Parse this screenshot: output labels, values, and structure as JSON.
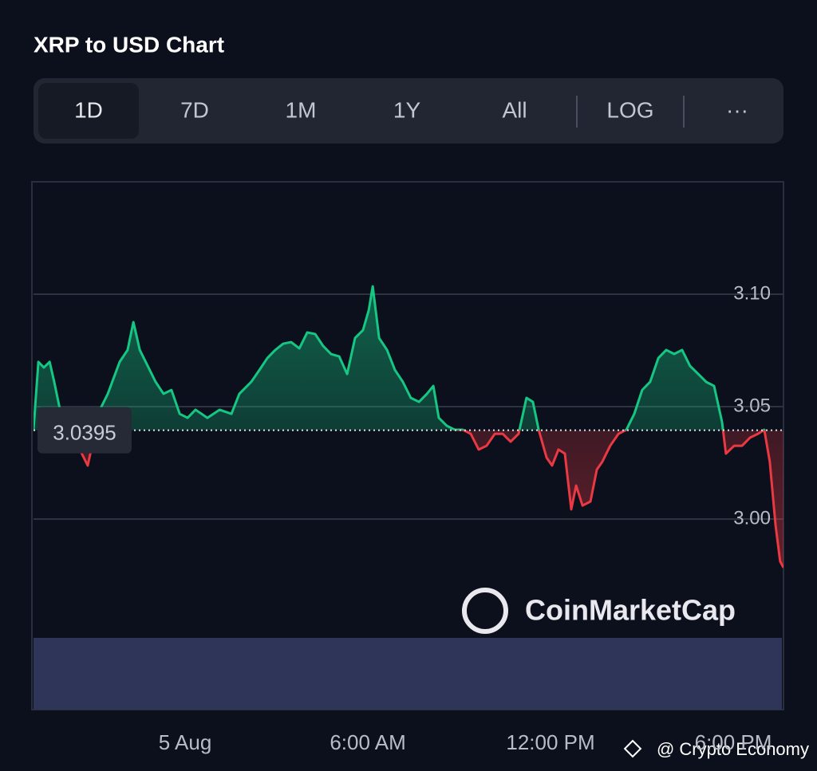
{
  "tabs": [
    "1D",
    "7D",
    "1M",
    "1Y",
    "All",
    "LOG",
    "···"
  ],
  "watermark": "CoinMarketCap",
  "credit": "@ Crypto Economy",
  "chart_data": {
    "type": "line",
    "title": "XRP to USD Chart",
    "x": [
      -4.98,
      -4.82,
      -4.64,
      -4.45,
      -4.3,
      -4.11,
      -3.2,
      -2.8,
      -2.54,
      -2.15,
      -1.89,
      -1.7,
      -1.49,
      -1.23,
      -0.97,
      -0.71,
      -0.45,
      -0.18,
      0.08,
      0.34,
      0.73,
      1.13,
      1.52,
      1.78,
      2.17,
      2.44,
      2.7,
      2.96,
      3.22,
      3.48,
      3.75,
      4.01,
      4.27,
      4.53,
      4.79,
      5.06,
      5.32,
      5.58,
      5.84,
      6.03,
      6.16,
      6.37,
      6.63,
      6.89,
      7.15,
      7.41,
      7.68,
      7.94,
      8.15,
      8.33,
      8.59,
      8.86,
      9.12,
      9.38,
      9.64,
      9.9,
      10.17,
      10.43,
      10.69,
      10.95,
      11.21,
      11.42,
      11.61,
      11.87,
      12.05,
      12.26,
      12.47,
      12.68,
      12.84,
      13.05,
      13.31,
      13.52,
      13.7,
      13.96,
      14.23,
      14.49,
      14.75,
      15.01,
      15.27,
      15.54,
      15.8,
      16.06,
      16.32,
      16.58,
      16.85,
      17.11,
      17.37,
      17.63,
      17.76,
      18.03,
      18.29,
      18.55,
      18.81,
      19.02,
      19.2,
      19.39,
      19.54,
      19.65
    ],
    "values": [
      3.0397,
      3.0699,
      3.0674,
      3.0699,
      3.061,
      3.0486,
      3.0238,
      3.0486,
      3.0557,
      3.0699,
      3.0752,
      3.0876,
      3.0752,
      3.0681,
      3.061,
      3.0557,
      3.0574,
      3.0468,
      3.045,
      3.0486,
      3.045,
      3.0486,
      3.0468,
      3.0557,
      3.061,
      3.0663,
      3.0716,
      3.0752,
      3.078,
      3.0787,
      3.0759,
      3.083,
      3.0823,
      3.077,
      3.0734,
      3.0723,
      3.0645,
      3.0805,
      3.084,
      3.0929,
      3.1035,
      3.0805,
      3.0752,
      3.0663,
      3.061,
      3.0539,
      3.0521,
      3.0557,
      3.0592,
      3.045,
      3.0415,
      3.0397,
      3.0397,
      3.0379,
      3.0309,
      3.0326,
      3.0379,
      3.0379,
      3.0344,
      3.0379,
      3.0539,
      3.0521,
      3.0397,
      3.0273,
      3.0238,
      3.0309,
      3.0291,
      3.0043,
      3.0149,
      3.006,
      3.0078,
      3.022,
      3.0255,
      3.0326,
      3.0379,
      3.0397,
      3.0468,
      3.0574,
      3.061,
      3.0716,
      3.0752,
      3.0734,
      3.0752,
      3.0681,
      3.0645,
      3.061,
      3.0592,
      3.0433,
      3.0291,
      3.0326,
      3.0326,
      3.0362,
      3.0379,
      3.0397,
      3.0255,
      2.9972,
      2.9812,
      2.9784
    ],
    "baseline": 3.0395,
    "color_up": "#16c784",
    "color_down": "#ea3943",
    "xlim": [
      -4.98,
      19.65
    ],
    "xticks": [
      {
        "value": 0,
        "label": "5 Aug"
      },
      {
        "value": 6,
        "label": "6:00 AM"
      },
      {
        "value": 12,
        "label": "12:00 PM"
      },
      {
        "value": 18,
        "label": "6:00 PM"
      }
    ],
    "ylim": [
      2.95,
      3.15
    ],
    "yticks": [
      {
        "value": 3.1,
        "label": "3.10"
      },
      {
        "value": 3.05,
        "label": "3.05"
      },
      {
        "value": 3,
        "label": "3.00"
      }
    ],
    "grid": true
  }
}
